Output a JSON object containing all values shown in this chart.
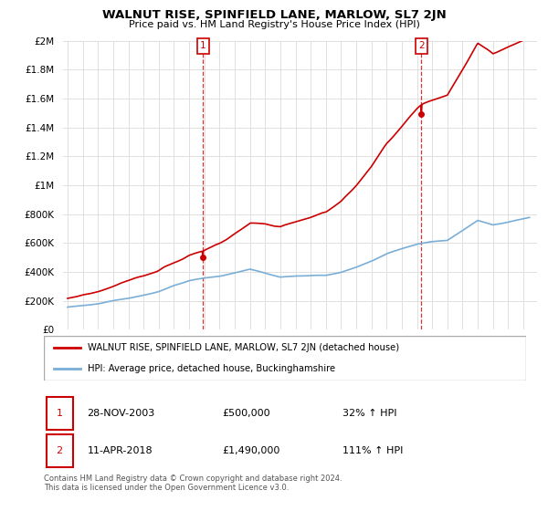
{
  "title": "WALNUT RISE, SPINFIELD LANE, MARLOW, SL7 2JN",
  "subtitle": "Price paid vs. HM Land Registry's House Price Index (HPI)",
  "legend_line1": "WALNUT RISE, SPINFIELD LANE, MARLOW, SL7 2JN (detached house)",
  "legend_line2": "HPI: Average price, detached house, Buckinghamshire",
  "footnote": "Contains HM Land Registry data © Crown copyright and database right 2024.\nThis data is licensed under the Open Government Licence v3.0.",
  "annotation1_date": "28-NOV-2003",
  "annotation1_price": "£500,000",
  "annotation1_pct": "32% ↑ HPI",
  "annotation2_date": "11-APR-2018",
  "annotation2_price": "£1,490,000",
  "annotation2_pct": "111% ↑ HPI",
  "sale1_year": 2003.91,
  "sale1_price": 500000,
  "sale2_year": 2018.28,
  "sale2_price": 1490000,
  "red_line_color": "#cc0000",
  "blue_line_color": "#7aaed6",
  "grid_color": "#e0e0e0",
  "annotation_box_color": "#cc0000"
}
